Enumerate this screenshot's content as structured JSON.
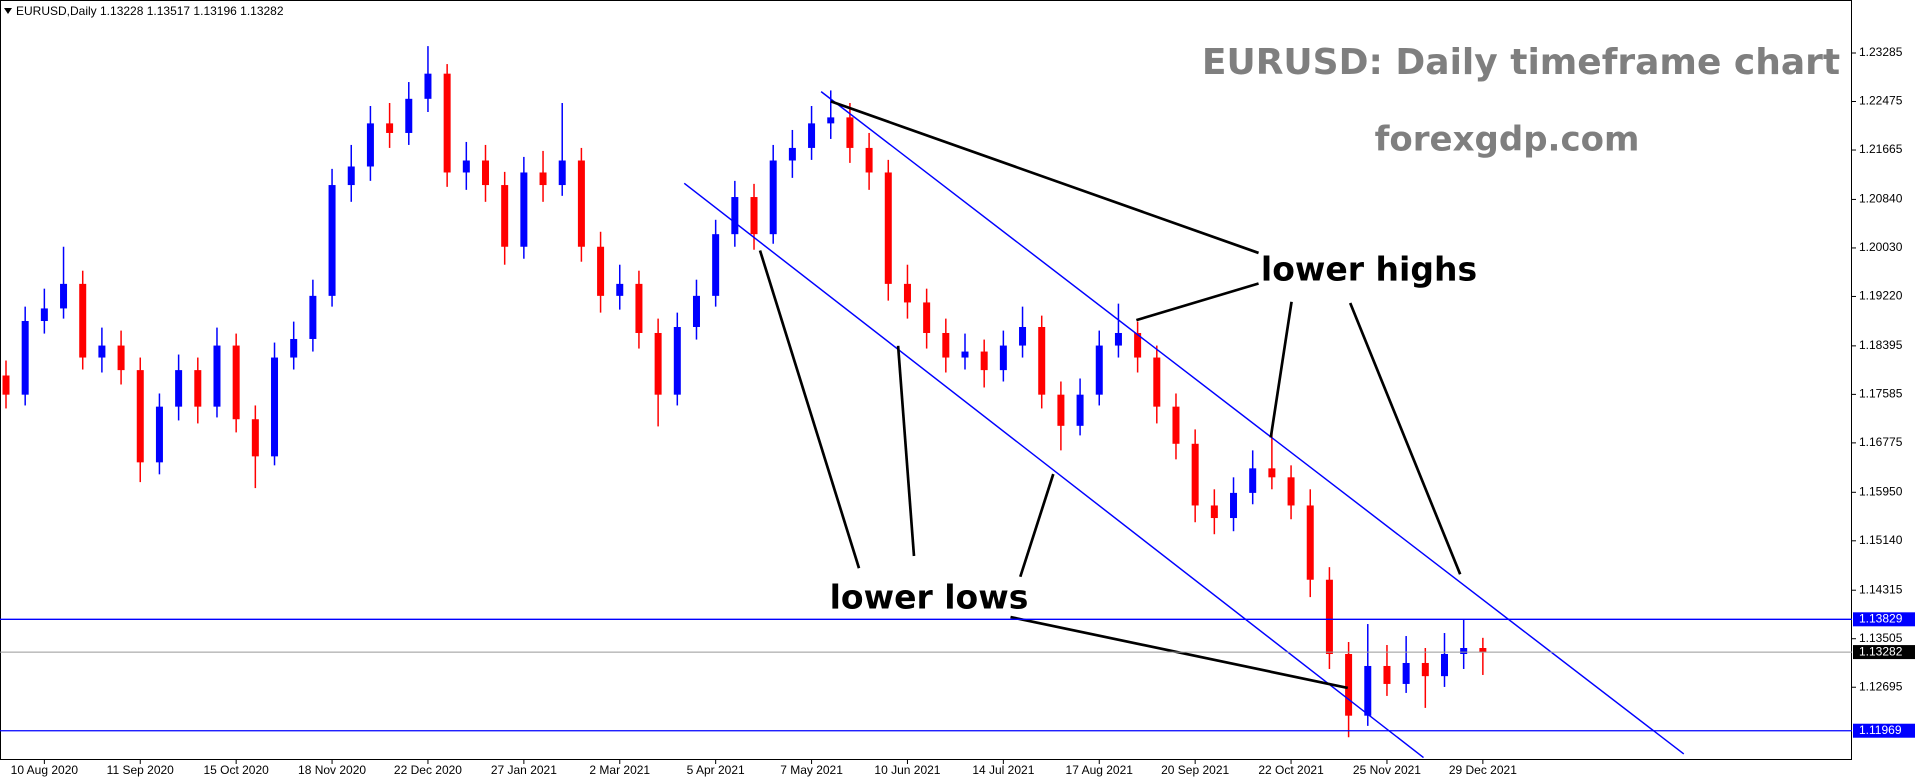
{
  "chart_data": {
    "type": "candlestick",
    "header": "EURUSD,Daily  1.13228 1.13517 1.13196 1.13282",
    "title": "EURUSD: Daily timeframe chart",
    "subtitle": "forexgdp.com",
    "annotations": [
      "lower highs",
      "lower lows"
    ],
    "categories": [
      null,
      null,
      "10 Aug 2020",
      null,
      null,
      null,
      null,
      "11 Sep 2020",
      null,
      null,
      null,
      null,
      "15 Oct 2020",
      null,
      null,
      null,
      null,
      "18 Nov 2020",
      null,
      null,
      null,
      null,
      "22 Dec 2020",
      null,
      null,
      null,
      null,
      "27 Jan 2021",
      null,
      null,
      null,
      null,
      "2 Mar 2021",
      null,
      null,
      null,
      null,
      "5 Apr 2021",
      null,
      null,
      null,
      null,
      "7 May 2021",
      null,
      null,
      null,
      null,
      "10 Jun 2021",
      null,
      null,
      null,
      null,
      "14 Jul 2021",
      null,
      null,
      null,
      null,
      "17 Aug 2021",
      null,
      null,
      null,
      null,
      "20 Sep 2021",
      null,
      null,
      null,
      null,
      "22 Oct 2021",
      null,
      null,
      null,
      null,
      "25 Nov 2021",
      null,
      null,
      null,
      null,
      "29 Dec 2021"
    ],
    "open": [
      1.179,
      1.1758,
      1.1881,
      1.1902,
      1.1943,
      1.182,
      1.184,
      1.1799,
      1.1645,
      1.1738,
      1.1799,
      1.1738,
      1.184,
      1.1717,
      1.1655,
      1.182,
      1.1851,
      1.1923,
      1.2108,
      1.2139,
      1.2211,
      1.2195,
      1.2252,
      1.2294,
      1.2129,
      1.2149,
      1.2108,
      1.2005,
      1.2129,
      1.2108,
      1.2149,
      1.2005,
      1.1923,
      1.1943,
      1.1861,
      1.1758,
      1.1871,
      1.1923,
      1.2026,
      1.2088,
      1.2026,
      1.2149,
      1.217,
      1.2211,
      1.2221,
      1.217,
      1.2129,
      1.1943,
      1.1912,
      1.1861,
      1.182,
      1.183,
      1.1799,
      1.184,
      1.1871,
      1.1758,
      1.1706,
      1.1758,
      1.184,
      1.1861,
      1.182,
      1.1738,
      1.1676,
      1.1573,
      1.1552,
      1.1594,
      1.1635,
      1.162,
      1.1573,
      1.1449,
      1.1325,
      1.1222,
      1.1305,
      1.1275,
      1.131,
      1.1288,
      1.1325,
      1.1335
    ],
    "high": [
      1.1815,
      1.1905,
      1.1935,
      1.2005,
      1.1965,
      1.187,
      1.1865,
      1.182,
      1.176,
      1.1825,
      1.182,
      1.187,
      1.186,
      1.174,
      1.1845,
      1.188,
      1.195,
      1.2135,
      1.2175,
      1.224,
      1.2245,
      1.228,
      1.234,
      1.231,
      1.218,
      1.2175,
      1.213,
      1.2155,
      1.2165,
      1.2245,
      1.217,
      1.203,
      1.1975,
      1.1965,
      1.1885,
      1.1895,
      1.195,
      1.205,
      1.2115,
      1.211,
      1.2175,
      1.22,
      1.224,
      1.2266,
      1.2245,
      1.2195,
      1.215,
      1.1975,
      1.1935,
      1.1885,
      1.186,
      1.185,
      1.1865,
      1.1905,
      1.189,
      1.178,
      1.1785,
      1.1865,
      1.191,
      1.188,
      1.184,
      1.176,
      1.17,
      1.16,
      1.162,
      1.1665,
      1.1695,
      1.164,
      1.16,
      1.147,
      1.1345,
      1.1375,
      1.134,
      1.1355,
      1.1335,
      1.136,
      1.1383,
      1.1352
    ],
    "low": [
      1.1735,
      1.174,
      1.186,
      1.1885,
      1.18,
      1.1795,
      1.1775,
      1.1612,
      1.1625,
      1.1715,
      1.171,
      1.172,
      1.1695,
      1.1602,
      1.164,
      1.18,
      1.183,
      1.1905,
      1.208,
      1.2115,
      1.217,
      1.2175,
      1.223,
      1.2105,
      1.21,
      1.208,
      1.1975,
      1.1985,
      1.208,
      1.209,
      1.198,
      1.1895,
      1.19,
      1.1835,
      1.1705,
      1.174,
      1.185,
      1.1905,
      1.2005,
      1.2,
      1.201,
      1.212,
      1.215,
      1.2185,
      1.2145,
      1.21,
      1.1915,
      1.1885,
      1.1835,
      1.1795,
      1.18,
      1.177,
      1.178,
      1.182,
      1.1735,
      1.1665,
      1.169,
      1.174,
      1.182,
      1.1795,
      1.171,
      1.165,
      1.1545,
      1.1525,
      1.153,
      1.1575,
      1.16,
      1.155,
      1.142,
      1.13,
      1.1186,
      1.1205,
      1.1255,
      1.126,
      1.1235,
      1.127,
      1.13,
      1.129
    ],
    "close": [
      1.1758,
      1.1881,
      1.1902,
      1.1943,
      1.182,
      1.184,
      1.1799,
      1.1645,
      1.1738,
      1.1799,
      1.1738,
      1.184,
      1.1717,
      1.1655,
      1.182,
      1.1851,
      1.1923,
      1.2108,
      1.2139,
      1.2211,
      1.2195,
      1.2252,
      1.2294,
      1.2129,
      1.2149,
      1.2108,
      1.2005,
      1.2129,
      1.2108,
      1.2149,
      1.2005,
      1.1923,
      1.1943,
      1.1861,
      1.1758,
      1.1871,
      1.1923,
      1.2026,
      1.2088,
      1.2026,
      1.2149,
      1.217,
      1.2211,
      1.2221,
      1.217,
      1.2129,
      1.1943,
      1.1912,
      1.1861,
      1.182,
      1.183,
      1.1799,
      1.184,
      1.1871,
      1.1758,
      1.1706,
      1.1758,
      1.184,
      1.1861,
      1.182,
      1.1738,
      1.1676,
      1.1573,
      1.1552,
      1.1594,
      1.1635,
      1.162,
      1.1573,
      1.1449,
      1.1325,
      1.1222,
      1.1305,
      1.1275,
      1.131,
      1.1288,
      1.1325,
      1.1335,
      1.13282
    ],
    "up_color": "#0000ff",
    "down_color": "#ff0000",
    "level_color": "#0000ff",
    "levels": [
      1.13829,
      1.11969
    ],
    "last_price": 1.13282,
    "ylim": [
      1.1148,
      1.2417
    ],
    "yticks": [
      1.23285,
      1.22475,
      1.21665,
      {
        "value": 1.2084,
        "label": "1.20840"
      },
      {
        "value": 1.2003,
        "label": "1.20030"
      },
      {
        "value": 1.1922,
        "label": "1.19220"
      },
      1.18395,
      1.17585,
      1.16775,
      {
        "value": 1.1595,
        "label": "1.15950"
      },
      {
        "value": 1.1514,
        "label": "1.15140"
      },
      1.14315,
      1.13505,
      1.12695
    ]
  }
}
